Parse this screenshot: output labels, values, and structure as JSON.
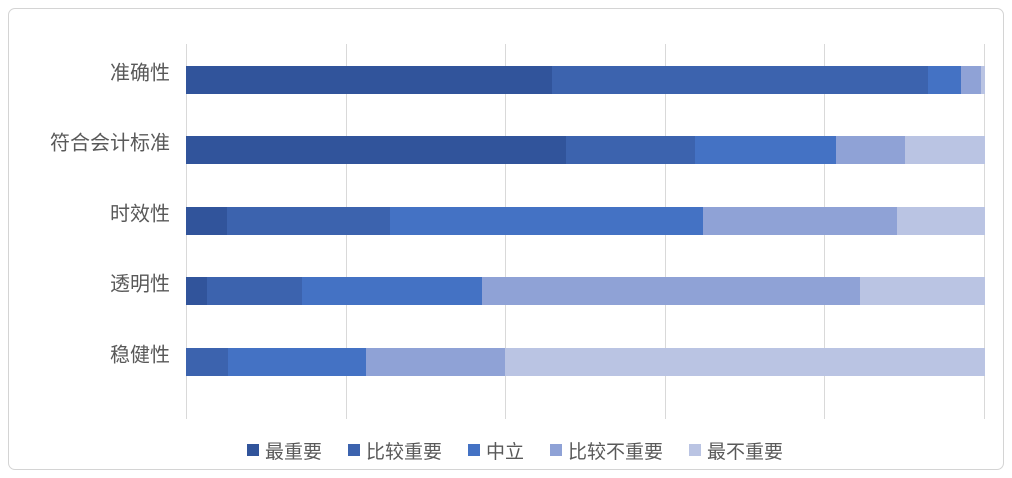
{
  "chart_data": {
    "type": "bar",
    "orientation": "horizontal",
    "stacked": true,
    "stacked_total_percent": 100,
    "title": "",
    "xlabel": "",
    "ylabel": "",
    "categories": [
      "准确性",
      "符合会计标准",
      "时效性",
      "透明性",
      "稳健性"
    ],
    "series": [
      {
        "name": "最重要",
        "color": "#31549B",
        "values": [
          45.8,
          47.6,
          5.1,
          2.6,
          0
        ]
      },
      {
        "name": "比较重要",
        "color": "#3C63AE",
        "values": [
          47.1,
          16.1,
          20.4,
          11.9,
          5.3
        ]
      },
      {
        "name": "中立",
        "color": "#4472C4",
        "values": [
          4.1,
          17.6,
          39.2,
          22.6,
          17.2
        ]
      },
      {
        "name": "比较不重要",
        "color": "#8FA2D6",
        "values": [
          2.5,
          8.7,
          24.3,
          47.2,
          17.4
        ]
      },
      {
        "name": "最不重要",
        "color": "#BAC4E3",
        "values": [
          0.5,
          10.0,
          11.0,
          15.7,
          60.1
        ]
      }
    ],
    "x_axis": {
      "min": 0,
      "max": 100,
      "tick_step_percent": 20,
      "ticks_percent": [
        0,
        20,
        40,
        60,
        80,
        100
      ],
      "tick_labels_visible": false
    },
    "legend": {
      "position": "bottom",
      "entries": [
        "最重要",
        "比较重要",
        "中立",
        "比较不重要",
        "最不重要"
      ]
    },
    "gridlines": "vertical"
  },
  "styles": {
    "background": "#FFFFFF",
    "frame_border_color": "#D4D4D4",
    "gridline_color": "#D9D9D9",
    "text_color": "#595959"
  }
}
